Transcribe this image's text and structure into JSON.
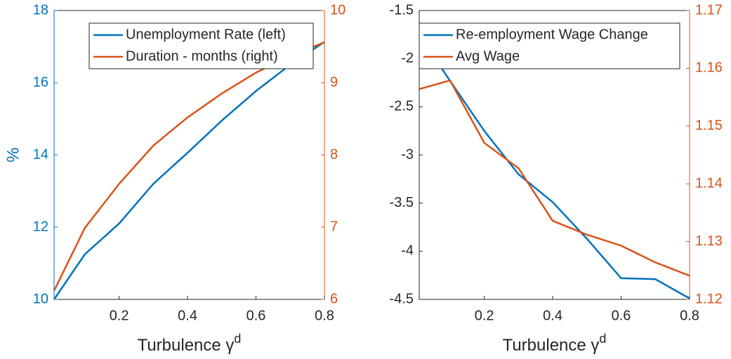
{
  "chart_data": [
    {
      "type": "line",
      "xlabel": "Turbulence γ",
      "xlabel_sup": "d",
      "ylabel": "%",
      "x": [
        0.01,
        0.1,
        0.2,
        0.3,
        0.4,
        0.5,
        0.6,
        0.7,
        0.8
      ],
      "xlim": [
        0.01,
        0.8
      ],
      "xticks": [
        0.2,
        0.4,
        0.6,
        0.8
      ],
      "ylim": [
        10,
        18
      ],
      "yticks": [
        10,
        12,
        14,
        16,
        18
      ],
      "ycolor": "#0072BD",
      "y2lim": [
        6,
        10
      ],
      "y2ticks": [
        6,
        7,
        8,
        9,
        10
      ],
      "y2color": "#D95319",
      "series": [
        {
          "name": "Unemployment Rate (left)",
          "color": "#0072BD",
          "values": [
            10,
            11.25,
            12.1,
            13.2,
            14.06,
            14.95,
            15.77,
            16.5,
            17.13
          ]
        },
        {
          "name": "Duration - months (right)",
          "color": "#D95319",
          "axis": "y2",
          "values": [
            6.12,
            6.99,
            7.6,
            8.13,
            8.52,
            8.85,
            9.14,
            9.37,
            9.56
          ]
        }
      ]
    },
    {
      "type": "line",
      "xlabel": "Turbulence γ",
      "xlabel_sup": "d",
      "x": [
        0.01,
        0.1,
        0.2,
        0.3,
        0.4,
        0.5,
        0.6,
        0.7,
        0.8
      ],
      "xlim": [
        0.01,
        0.8
      ],
      "xticks": [
        0.2,
        0.4,
        0.6,
        0.8
      ],
      "ylim": [
        -4.5,
        -1.5
      ],
      "yticks": [
        -4.5,
        -4,
        -3.5,
        -3,
        -2.5,
        -2,
        -1.5
      ],
      "ycolor": "#262626",
      "y2lim": [
        1.12,
        1.17
      ],
      "y2ticks": [
        1.12,
        1.13,
        1.14,
        1.15,
        1.16,
        1.17
      ],
      "y2color": "#D95319",
      "series": [
        {
          "name": "Re-employment Wage Change",
          "color": "#0072BD",
          "values": [
            -1.75,
            -2.23,
            -2.75,
            -3.2,
            -3.49,
            -3.87,
            -4.28,
            -4.29,
            -4.49
          ]
        },
        {
          "name": "Avg Wage",
          "color": "#D95319",
          "axis": "y2",
          "values": [
            1.1564,
            1.1579,
            1.1471,
            1.1427,
            1.1336,
            1.1312,
            1.1293,
            1.1264,
            1.1241
          ]
        }
      ]
    }
  ]
}
